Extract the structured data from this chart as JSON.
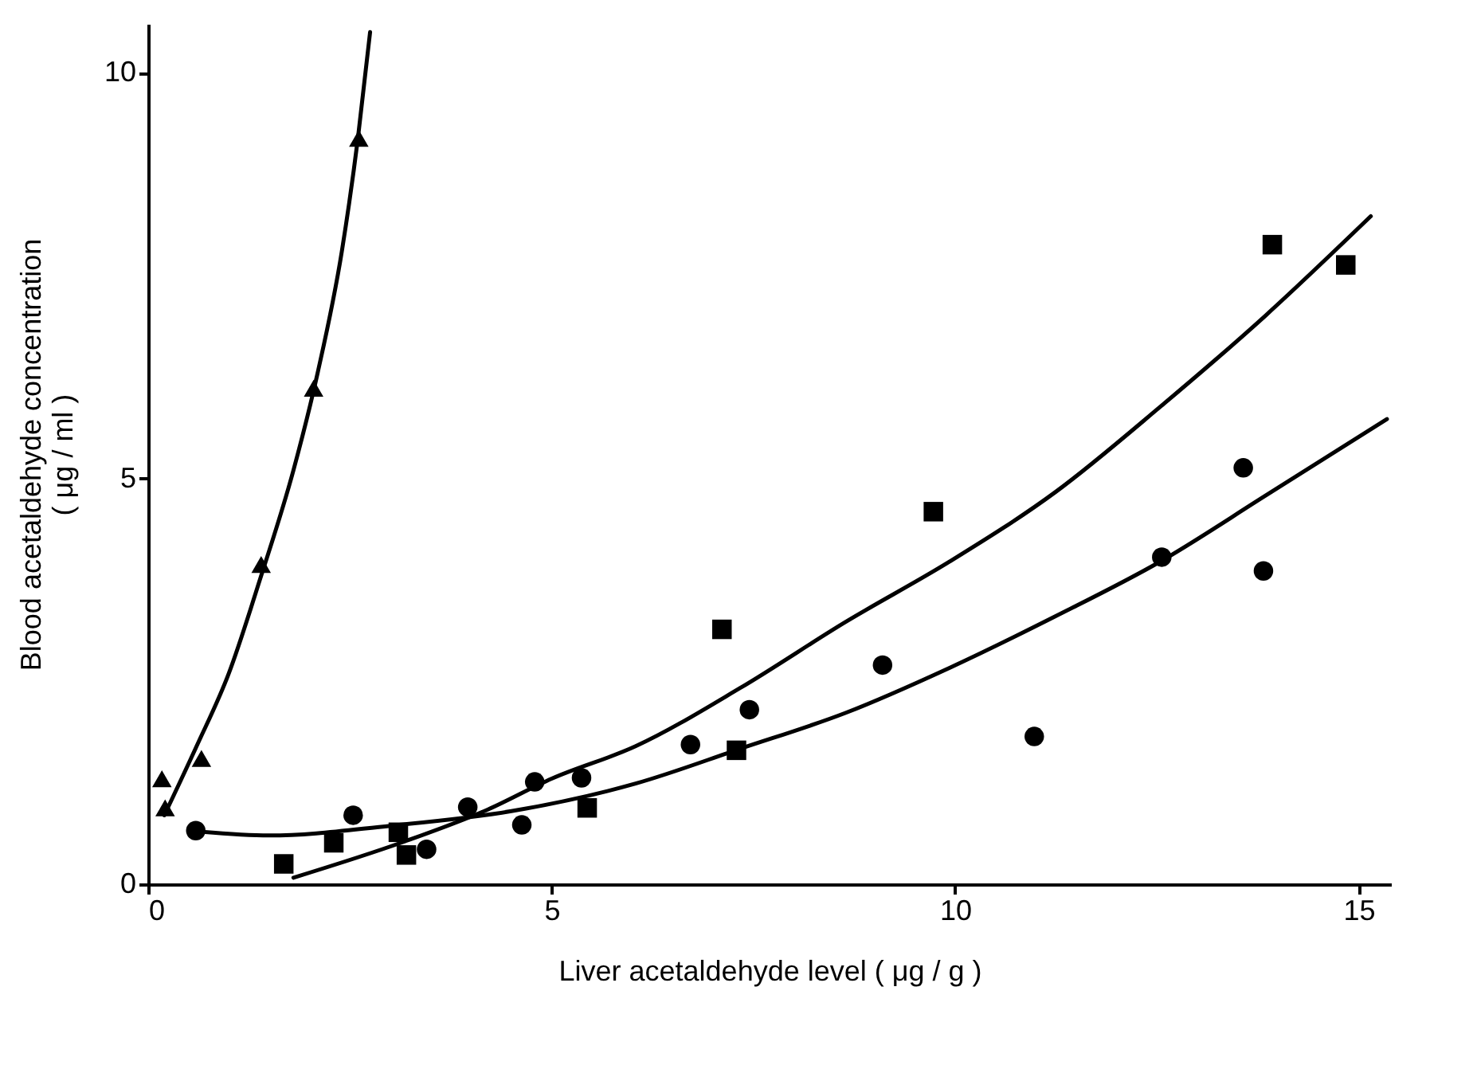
{
  "chart_data": {
    "type": "scatter",
    "xlabel": "Liver acetaldehyde level  ( μg / g )",
    "ylabel": "Blood acetaldehyde concentration\n( μg / ml )",
    "xlim": [
      0,
      15.4
    ],
    "ylim": [
      0,
      10.6
    ],
    "xticks": [
      0,
      5,
      10,
      15
    ],
    "yticks": [
      0,
      5,
      10
    ],
    "series": [
      {
        "marker": "triangle",
        "color": "#000000",
        "x": [
          0.17,
          0.21,
          0.66,
          1.4,
          2.05,
          2.61
        ],
        "values": [
          1.3,
          0.94,
          1.55,
          3.94,
          6.11,
          9.19
        ]
      },
      {
        "marker": "square",
        "color": "#000000",
        "x": [
          1.68,
          2.3,
          3.1,
          3.2,
          5.44,
          7.11,
          7.29,
          9.73,
          13.93,
          14.84
        ],
        "values": [
          0.25,
          0.51,
          0.64,
          0.36,
          0.94,
          3.14,
          1.65,
          4.59,
          7.88,
          7.63
        ]
      },
      {
        "marker": "circle",
        "color": "#000000",
        "x": [
          0.59,
          2.54,
          3.45,
          3.96,
          4.63,
          4.79,
          5.37,
          6.72,
          7.45,
          9.1,
          10.98,
          12.56,
          13.57,
          13.82
        ],
        "values": [
          0.66,
          0.85,
          0.43,
          0.95,
          0.73,
          1.26,
          1.31,
          1.72,
          2.15,
          2.7,
          1.82,
          4.03,
          5.13,
          3.86
        ]
      },
      {
        "type": "line",
        "color": "#000000",
        "x": [
          0.2,
          0.6,
          1.0,
          1.4,
          1.8,
          2.1,
          2.4,
          2.6,
          2.75
        ],
        "values": [
          0.85,
          1.7,
          2.6,
          3.8,
          5.1,
          6.3,
          7.8,
          9.2,
          10.5
        ]
      },
      {
        "type": "line",
        "color": "#000000",
        "x": [
          1.8,
          3.16,
          4.21,
          5.0,
          6.04,
          7.34,
          8.64,
          9.94,
          11.24,
          12.55,
          13.85,
          15.15
        ],
        "values": [
          0.08,
          0.52,
          0.92,
          1.3,
          1.7,
          2.42,
          3.23,
          3.98,
          4.83,
          5.89,
          7.01,
          8.23
        ]
      },
      {
        "type": "line",
        "color": "#000000",
        "x": [
          0.5,
          1.5,
          3.0,
          4.5,
          6.04,
          7.34,
          8.64,
          9.94,
          11.24,
          12.55,
          13.85,
          15.35
        ],
        "values": [
          0.66,
          0.6,
          0.72,
          0.9,
          1.24,
          1.67,
          2.11,
          2.67,
          3.3,
          3.98,
          4.79,
          5.73
        ]
      }
    ]
  }
}
